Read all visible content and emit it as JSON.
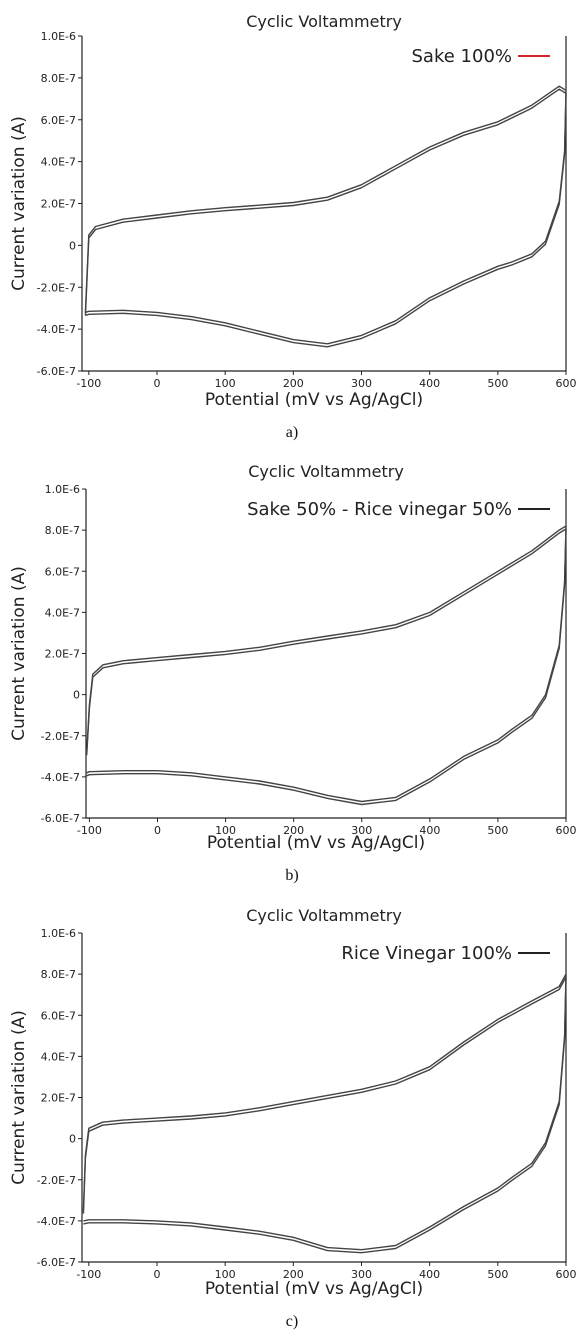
{
  "chart_data": [
    {
      "type": "line",
      "panel_caption": "a)",
      "title": "Cyclic Voltammetry",
      "xlabel": "Potential (mV vs Ag/AgCl)",
      "ylabel": "Current variation (A)",
      "xlim": [
        -110,
        600
      ],
      "ylim": [
        -6e-07,
        1e-06
      ],
      "x_ticks": [
        "-100",
        "0",
        "100",
        "200",
        "300",
        "400",
        "500",
        "600"
      ],
      "y_ticks": [
        "-6.0E-7",
        "-4.0E-7",
        "-2.0E-7",
        "0",
        "2.0E-7",
        "4.0E-7",
        "6.0E-7",
        "8.0E-7",
        "1.0E-6"
      ],
      "legend_position": "top-right",
      "series": [
        {
          "name": "Sake 100%",
          "color": "#d62728",
          "x": [
            -105,
            -100,
            -90,
            -50,
            0,
            50,
            100,
            150,
            200,
            250,
            300,
            350,
            400,
            450,
            500,
            550,
            590,
            600,
            598,
            590,
            570,
            550,
            520,
            500,
            450,
            400,
            350,
            300,
            250,
            200,
            150,
            100,
            50,
            0,
            -50,
            -100,
            -105
          ],
          "y": [
            -3.2e-07,
            5e-08,
            9e-08,
            1.25e-07,
            1.45e-07,
            1.65e-07,
            1.8e-07,
            1.92e-07,
            2.05e-07,
            2.3e-07,
            2.9e-07,
            3.8e-07,
            4.7e-07,
            5.4e-07,
            5.9e-07,
            6.7e-07,
            7.6e-07,
            7.4e-07,
            4.5e-07,
            2.1e-07,
            2e-08,
            -4e-08,
            -8e-08,
            -1e-07,
            -1.7e-07,
            -2.5e-07,
            -3.6e-07,
            -4.3e-07,
            -4.7e-07,
            -4.5e-07,
            -4.1e-07,
            -3.7e-07,
            -3.4e-07,
            -3.2e-07,
            -3.1e-07,
            -3.15e-07,
            -3.2e-07
          ]
        }
      ]
    },
    {
      "type": "line",
      "panel_caption": "b)",
      "title": "Cyclic Voltammetry",
      "xlabel": "Potential (mV vs Ag/AgCl)",
      "ylabel": "Current variation (A)",
      "xlim": [
        -105,
        600
      ],
      "ylim": [
        -6e-07,
        1e-06
      ],
      "x_ticks": [
        "-100",
        "0",
        "100",
        "200",
        "300",
        "400",
        "500",
        "600"
      ],
      "y_ticks": [
        "-6.0E-7",
        "-4.0E-7",
        "-2.0E-7",
        "0",
        "2.0E-7",
        "4.0E-7",
        "6.0E-7",
        "8.0E-7",
        "1.0E-6"
      ],
      "legend_position": "top-right",
      "series": [
        {
          "name": "Sake 50% - Rice vinegar 50%",
          "color": "#222222",
          "x": [
            -104,
            -100,
            -95,
            -80,
            -50,
            0,
            50,
            100,
            150,
            200,
            250,
            300,
            350,
            400,
            450,
            500,
            550,
            590,
            600,
            598,
            590,
            570,
            550,
            520,
            500,
            450,
            400,
            350,
            300,
            250,
            200,
            150,
            100,
            50,
            0,
            -50,
            -100,
            -104
          ],
          "y": [
            -2.8e-07,
            -5e-08,
            1e-07,
            1.45e-07,
            1.65e-07,
            1.8e-07,
            1.95e-07,
            2.1e-07,
            2.3e-07,
            2.6e-07,
            2.85e-07,
            3.1e-07,
            3.4e-07,
            4e-07,
            5e-07,
            6e-07,
            7e-07,
            8e-07,
            8.2e-07,
            5.5e-07,
            2.4e-07,
            0,
            -1e-07,
            -1.7e-07,
            -2.2e-07,
            -3e-07,
            -4.1e-07,
            -5e-07,
            -5.2e-07,
            -4.9e-07,
            -4.5e-07,
            -4.2e-07,
            -4e-07,
            -3.8e-07,
            -3.7e-07,
            -3.7e-07,
            -3.75e-07,
            -3.8e-07
          ]
        }
      ]
    },
    {
      "type": "line",
      "panel_caption": "c)",
      "title": "Cyclic Voltammetry",
      "xlabel": "Potential (mV vs Ag/AgCl)",
      "ylabel": "Current variation (A)",
      "xlim": [
        -110,
        600
      ],
      "ylim": [
        -6e-07,
        1e-06
      ],
      "x_ticks": [
        "-100",
        "0",
        "100",
        "200",
        "300",
        "400",
        "500",
        "600"
      ],
      "y_ticks": [
        "-6.0E-7",
        "-4.0E-7",
        "-2.0E-7",
        "0",
        "2.0E-7",
        "4.0E-7",
        "6.0E-7",
        "8.0E-7",
        "1.0E-6"
      ],
      "legend_position": "top-right",
      "series": [
        {
          "name": "Rice Vinegar 100%",
          "color": "#222222",
          "x": [
            -108,
            -105,
            -100,
            -80,
            -50,
            0,
            50,
            100,
            150,
            200,
            250,
            300,
            350,
            400,
            450,
            500,
            550,
            590,
            600,
            598,
            590,
            570,
            550,
            520,
            500,
            450,
            400,
            350,
            300,
            250,
            200,
            150,
            100,
            50,
            0,
            -50,
            -100,
            -108
          ],
          "y": [
            -3.5e-07,
            -8e-08,
            5e-08,
            8e-08,
            9e-08,
            1e-07,
            1.1e-07,
            1.25e-07,
            1.5e-07,
            1.8e-07,
            2.1e-07,
            2.4e-07,
            2.8e-07,
            3.5e-07,
            4.7e-07,
            5.8e-07,
            6.7e-07,
            7.4e-07,
            8e-07,
            5e-07,
            1.8e-07,
            -2e-08,
            -1.2e-07,
            -1.9e-07,
            -2.4e-07,
            -3.3e-07,
            -4.3e-07,
            -5.2e-07,
            -5.4e-07,
            -5.3e-07,
            -4.8e-07,
            -4.5e-07,
            -4.3e-07,
            -4.1e-07,
            -4e-07,
            -3.95e-07,
            -3.95e-07,
            -4e-07
          ]
        }
      ]
    }
  ]
}
